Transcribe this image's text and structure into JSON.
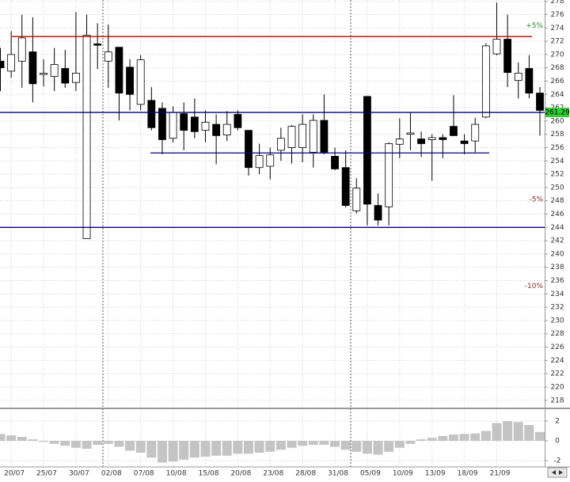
{
  "chart_data": [
    {
      "type": "candlestick",
      "categories": [
        null,
        "20/07",
        null,
        null,
        "25/07",
        null,
        null,
        "30/07",
        null,
        null,
        "02/08",
        null,
        null,
        "07/08",
        null,
        null,
        "10/08",
        null,
        null,
        "15/08",
        null,
        null,
        "20/08",
        null,
        null,
        "23/08",
        null,
        null,
        "28/08",
        null,
        null,
        "31/08",
        null,
        null,
        "05/09",
        null,
        null,
        "10/09",
        null,
        null,
        "13/09",
        null,
        null,
        "18/09",
        null,
        null,
        "21/09",
        null,
        null,
        null,
        null
      ],
      "open": [
        269,
        267.5,
        269,
        270.4,
        267,
        266.7,
        267.9,
        265.8,
        242.3,
        271.6,
        269,
        271.1,
        268.1,
        262.5,
        263.1,
        261.9,
        257.4,
        261.1,
        260.6,
        258.6,
        259.5,
        257.9,
        261,
        258.6,
        253,
        253.2,
        255.6,
        256,
        256,
        255.3,
        260.1,
        254.7,
        253,
        246.5,
        263.7,
        247.3,
        247.1,
        256.5,
        258,
        257.3,
        257.2,
        257.5,
        259.2,
        257,
        257,
        260.6,
        270.1,
        272.3,
        266.1,
        267.9,
        264.2
      ],
      "high": [
        271,
        273.5,
        276,
        275.6,
        269.3,
        271,
        270.7,
        276.4,
        276,
        274.7,
        274.5,
        271.1,
        269.3,
        269.9,
        265.1,
        262.8,
        262.2,
        262.8,
        263.4,
        261.6,
        261,
        261.5,
        261.6,
        258.6,
        256.6,
        256,
        259,
        259.4,
        261,
        261,
        264,
        256,
        255.6,
        251.4,
        263.7,
        249.1,
        256.8,
        260.4,
        261.3,
        258.4,
        258,
        258,
        263.9,
        258,
        260.5,
        271.7,
        277.8,
        276,
        268.8,
        269.9,
        265.1
      ],
      "low": [
        264.5,
        266.5,
        265,
        262.8,
        265.2,
        264.5,
        265,
        264.5,
        242.3,
        267.8,
        265,
        260.1,
        261.6,
        261.6,
        258.6,
        255,
        256.8,
        255.6,
        257.4,
        256.8,
        253.5,
        257,
        258.6,
        251.8,
        252,
        251.2,
        254,
        253.6,
        253.8,
        253,
        255,
        252.6,
        247,
        246.1,
        244.3,
        244.3,
        244.3,
        254.4,
        255.6,
        254.6,
        251,
        254.4,
        257.8,
        255,
        255.3,
        260.4,
        269.9,
        265.1,
        263.4,
        263.4,
        257.8
      ],
      "close": [
        268,
        270,
        272.5,
        265.6,
        267.2,
        268.5,
        265.7,
        267.2,
        272.9,
        271.4,
        270.4,
        264.2,
        264,
        269.2,
        259,
        257.2,
        261.3,
        258.6,
        258.4,
        259.8,
        257.8,
        259.5,
        259,
        253,
        254.8,
        254.9,
        257.4,
        259.2,
        259.5,
        260.1,
        255.3,
        252.8,
        247.3,
        249.9,
        247.5,
        245.1,
        256.6,
        257.3,
        258.2,
        256.6,
        257.5,
        257.2,
        257.8,
        256.6,
        259.5,
        271.3,
        272.3,
        267.3,
        267.2,
        264.2,
        261.6
      ],
      "up_color": "#ffffff",
      "down_color": "#000000",
      "levels": [
        {
          "value": 272.7,
          "color": "#c00000"
        },
        {
          "value": 261.29,
          "color": "#000080",
          "label_color": "#33cc33"
        },
        {
          "value": 255.2,
          "color": "#000080"
        },
        {
          "value": 244,
          "color": "#000080"
        }
      ],
      "annotations": [
        {
          "label": "+5%",
          "value": 274.35,
          "color": "#2a8a2a"
        },
        {
          "label": "-5%",
          "value": 248.23,
          "color": "#8a2a2a"
        },
        {
          "label": "-10%",
          "value": 235.16,
          "color": "#8a2a2a"
        }
      ],
      "ylim": [
        216.9,
        278.2
      ],
      "yticks": [
        218,
        220,
        222,
        224,
        226,
        228,
        230,
        232,
        234,
        236,
        238,
        240,
        242,
        244,
        246,
        248,
        250,
        252,
        254,
        256,
        258,
        260,
        262,
        264,
        266,
        268,
        270,
        272,
        274,
        276,
        278
      ],
      "grid": true
    },
    {
      "type": "bar",
      "values": [
        0.7,
        0.55,
        0.4,
        0.15,
        -0.1,
        -0.3,
        -0.5,
        -0.7,
        -0.8,
        -0.4,
        -0.3,
        -0.6,
        -1.0,
        -1.2,
        -1.7,
        -2.2,
        -2.1,
        -1.9,
        -1.7,
        -1.6,
        -1.5,
        -1.5,
        -1.3,
        -1.3,
        -1.2,
        -1.1,
        -0.9,
        -0.7,
        -0.5,
        -0.4,
        -0.4,
        -0.6,
        -0.9,
        -1.1,
        -1.3,
        -1.4,
        -1.1,
        -0.7,
        -0.3,
        0.15,
        0.3,
        0.5,
        0.65,
        0.7,
        0.75,
        1.0,
        1.8,
        2.0,
        1.9,
        1.6,
        0.9
      ],
      "color": "#c4c4c4",
      "ylim": [
        -2.64,
        3.12
      ],
      "yticks": [
        -2,
        0,
        2
      ]
    }
  ]
}
